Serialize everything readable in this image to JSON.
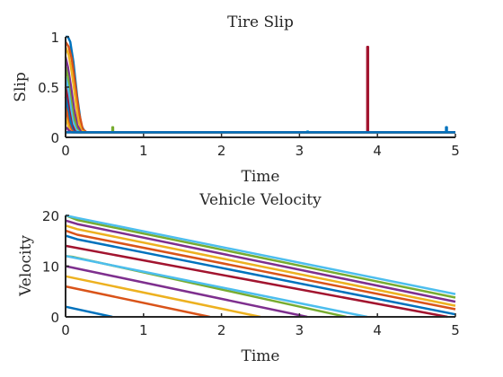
{
  "colors": [
    "#0072BD",
    "#D95319",
    "#EDB120",
    "#7E2F8E",
    "#77AC30",
    "#4DBEEE",
    "#A2142F"
  ],
  "chart_data": [
    {
      "type": "line",
      "title": "Tire Slip",
      "xlabel": "Time",
      "ylabel": "Slip",
      "xlim": [
        0,
        5
      ],
      "ylim": [
        0,
        1
      ],
      "xticks": [
        "0",
        "1",
        "2",
        "3",
        "4",
        "5"
      ],
      "yticks": [
        "0",
        "0.5",
        "1"
      ],
      "grid": false,
      "series": [
        {
          "x": [
            0,
            0.03,
            0.06,
            0.1,
            0.15,
            0.2,
            0.25,
            0.3,
            5
          ],
          "y": [
            1,
            1,
            0.95,
            0.75,
            0.4,
            0.12,
            0.05,
            0.05,
            0.05
          ]
        },
        {
          "x": [
            0,
            0.04,
            0.08,
            0.12,
            0.17,
            0.22,
            0.27,
            5
          ],
          "y": [
            0.95,
            0.9,
            0.78,
            0.55,
            0.25,
            0.08,
            0.05,
            0.05
          ]
        },
        {
          "x": [
            0,
            0.04,
            0.08,
            0.12,
            0.16,
            0.2,
            0.25,
            5
          ],
          "y": [
            0.9,
            0.82,
            0.65,
            0.42,
            0.18,
            0.07,
            0.05,
            0.05
          ]
        },
        {
          "x": [
            0,
            0.03,
            0.07,
            0.11,
            0.15,
            0.2,
            5
          ],
          "y": [
            0.8,
            0.7,
            0.5,
            0.28,
            0.12,
            0.05,
            0.05
          ]
        },
        {
          "x": [
            0,
            0.03,
            0.06,
            0.1,
            0.14,
            0.18,
            5
          ],
          "y": [
            0.7,
            0.6,
            0.42,
            0.22,
            0.09,
            0.05,
            0.05
          ]
        },
        {
          "x": [
            0,
            0.03,
            0.06,
            0.09,
            0.13,
            0.17,
            5
          ],
          "y": [
            0.6,
            0.5,
            0.33,
            0.17,
            0.08,
            0.05,
            0.05
          ]
        },
        {
          "x": [
            0,
            0.02,
            0.05,
            0.08,
            0.12,
            0.15,
            5
          ],
          "y": [
            0.5,
            0.42,
            0.26,
            0.13,
            0.06,
            0.05,
            0.05
          ]
        },
        {
          "x": [
            0,
            0.02,
            0.05,
            0.08,
            0.1,
            0.13,
            5
          ],
          "y": [
            0.4,
            0.32,
            0.2,
            0.1,
            0.06,
            0.05,
            0.05
          ]
        },
        {
          "x": [
            0,
            0.02,
            0.04,
            0.07,
            0.1,
            0.12,
            5
          ],
          "y": [
            0.3,
            0.24,
            0.14,
            0.08,
            0.05,
            0.05,
            0.05
          ]
        },
        {
          "x": [
            0,
            0.02,
            0.04,
            0.06,
            0.08,
            0.1,
            5
          ],
          "y": [
            0.2,
            0.16,
            0.1,
            0.07,
            0.05,
            0.05,
            0.05
          ]
        },
        {
          "x": [
            0,
            0.02,
            0.04,
            0.06,
            0.08,
            5
          ],
          "y": [
            0.1,
            0.09,
            0.07,
            0.06,
            0.05,
            0.05
          ]
        },
        {
          "x": [
            0,
            0.6,
            0.6,
            0.61,
            0.61,
            5
          ],
          "y": [
            0.05,
            0.05,
            0.1,
            0.1,
            0.05,
            0.05
          ]
        },
        {
          "x": [
            0,
            3.1,
            3.1,
            3.11,
            3.11,
            5
          ],
          "y": [
            0.05,
            0.05,
            0.06,
            0.06,
            0.05,
            0.05
          ]
        },
        {
          "x": [
            0,
            3.87,
            3.87,
            3.88,
            3.88,
            5
          ],
          "y": [
            0.05,
            0.05,
            0.9,
            0.9,
            0.05,
            0.05
          ]
        },
        {
          "x": [
            0,
            4.88,
            4.88,
            4.89,
            4.89,
            5
          ],
          "y": [
            0.05,
            0.05,
            0.1,
            0.1,
            0.05,
            0.05
          ]
        }
      ]
    },
    {
      "type": "line",
      "title": "Vehicle Velocity",
      "xlabel": "Time",
      "ylabel": "Velocity",
      "xlim": [
        0,
        5
      ],
      "ylim": [
        0,
        20
      ],
      "xticks": [
        "0",
        "1",
        "2",
        "3",
        "4",
        "5"
      ],
      "yticks": [
        "0",
        "10",
        "20"
      ],
      "grid": false,
      "series": [
        {
          "x": [
            0,
            0.6
          ],
          "y": [
            2,
            0
          ]
        },
        {
          "x": [
            0,
            1.85
          ],
          "y": [
            6,
            0
          ]
        },
        {
          "x": [
            0,
            2.5
          ],
          "y": [
            8,
            0
          ]
        },
        {
          "x": [
            0,
            3.1
          ],
          "y": [
            10,
            0
          ]
        },
        {
          "x": [
            0,
            0.1,
            3.6
          ],
          "y": [
            12,
            11.8,
            0
          ]
        },
        {
          "x": [
            0,
            0.1,
            3.87
          ],
          "y": [
            12,
            11.7,
            0
          ]
        },
        {
          "x": [
            0,
            4.9
          ],
          "y": [
            14,
            0
          ]
        },
        {
          "x": [
            0,
            0.15,
            5
          ],
          "y": [
            16,
            15.3,
            0.5
          ]
        },
        {
          "x": [
            0,
            0.15,
            5
          ],
          "y": [
            17,
            16.2,
            1.5
          ]
        },
        {
          "x": [
            0,
            0.15,
            5
          ],
          "y": [
            18,
            17.3,
            2.2
          ]
        },
        {
          "x": [
            0,
            0.15,
            5
          ],
          "y": [
            19,
            18.3,
            3
          ]
        },
        {
          "x": [
            0,
            0.15,
            5
          ],
          "y": [
            20,
            19.1,
            3.8
          ]
        },
        {
          "x": [
            0,
            0.15,
            5
          ],
          "y": [
            20,
            19.5,
            4.5
          ]
        }
      ]
    }
  ]
}
